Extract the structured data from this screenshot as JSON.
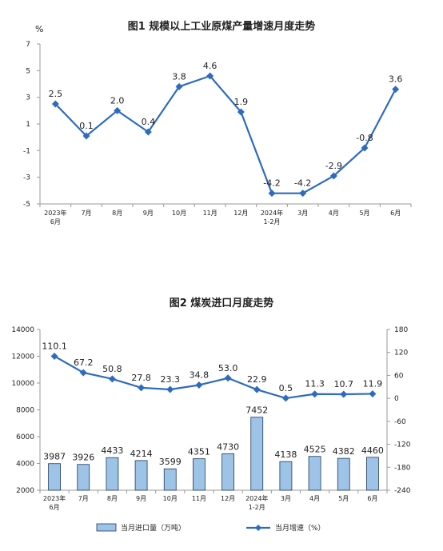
{
  "chart_data": [
    {
      "type": "line",
      "title": "图1  规模以上工业原煤产量增速月度走势",
      "ylabel": "%",
      "categories": [
        [
          "2023年",
          "6月"
        ],
        [
          "7月"
        ],
        [
          "8月"
        ],
        [
          "9月"
        ],
        [
          "10月"
        ],
        [
          "11月"
        ],
        [
          "12月"
        ],
        [
          "2024年",
          "1-2月"
        ],
        [
          "3月"
        ],
        [
          "4月"
        ],
        [
          "5月"
        ],
        [
          "6月"
        ]
      ],
      "series": [
        {
          "values": [
            2.5,
            0.1,
            2.0,
            0.4,
            3.8,
            4.6,
            1.9,
            -4.2,
            -4.2,
            -2.9,
            -0.8,
            3.6
          ],
          "labels": [
            "2.5",
            "0.1",
            "2.0",
            "0.4",
            "3.8",
            "4.6",
            "1.9",
            "-4.2",
            "-4.2",
            "-2.9",
            "-0.8",
            "3.6"
          ]
        }
      ],
      "yticks": [
        "-5",
        "-3",
        "-1",
        "1",
        "3",
        "5",
        "7"
      ],
      "ylim": [
        -5,
        7
      ],
      "grid": false,
      "color": "#2e6bbf"
    },
    {
      "type": "bar+line",
      "title": "图2  煤炭进口月度走势",
      "categories": [
        [
          "2023年",
          "6月"
        ],
        [
          "7月"
        ],
        [
          "8月"
        ],
        [
          "9月"
        ],
        [
          "10月"
        ],
        [
          "11月"
        ],
        [
          "12月"
        ],
        [
          "2024年",
          "1-2月"
        ],
        [
          "3月"
        ],
        [
          "4月"
        ],
        [
          "5月"
        ],
        [
          "6月"
        ]
      ],
      "series": [
        {
          "name": "当月进口量（万吨）",
          "type": "bar",
          "axis": "left",
          "values": [
            3987,
            3926,
            4433,
            4214,
            3599,
            4351,
            4730,
            7452,
            4138,
            4525,
            4382,
            4460
          ],
          "labels": [
            "3987",
            "3926",
            "4433",
            "4214",
            "3599",
            "4351",
            "4730",
            "7452",
            "4138",
            "4525",
            "4382",
            "4460"
          ],
          "color": "#9dc3e6"
        },
        {
          "name": "当月增速（%）",
          "type": "line",
          "axis": "right",
          "values": [
            110.1,
            67.2,
            50.8,
            27.8,
            23.3,
            34.8,
            53.0,
            22.9,
            0.5,
            11.3,
            10.7,
            11.9
          ],
          "labels": [
            "110.1",
            "67.2",
            "50.8",
            "27.8",
            "23.3",
            "34.8",
            "53.0",
            "22.9",
            "0.5",
            "11.3",
            "10.7",
            "11.9"
          ],
          "color": "#2e6bbf"
        }
      ],
      "yticks_left": [
        "2000",
        "4000",
        "6000",
        "8000",
        "10000",
        "12000",
        "14000"
      ],
      "ylim_left": [
        2000,
        14000
      ],
      "yticks_right": [
        "-240",
        "-180",
        "-120",
        "-60",
        "0",
        "60",
        "120",
        "180"
      ],
      "ylim_right": [
        -240,
        180
      ],
      "legend": "bottom",
      "grid": false
    }
  ]
}
